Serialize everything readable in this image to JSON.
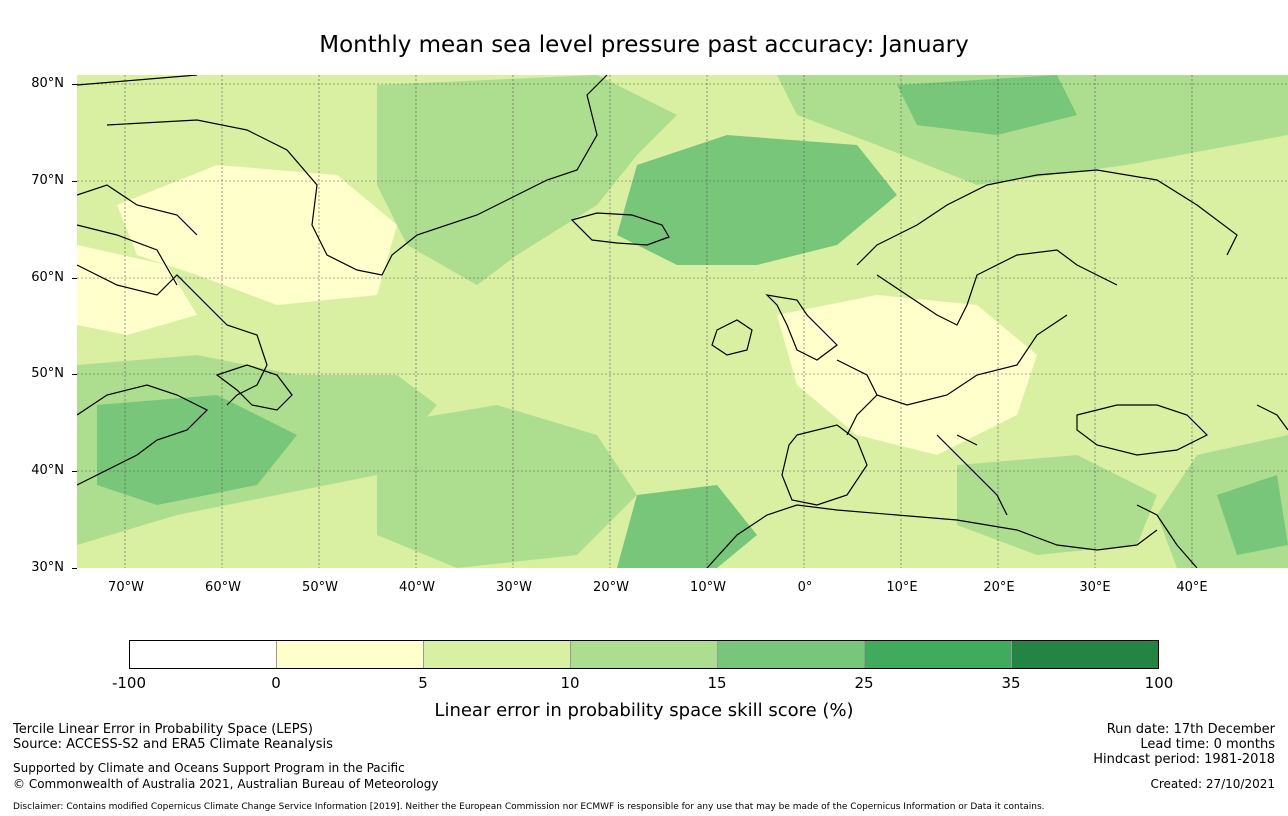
{
  "title": "Monthly mean sea level pressure past accuracy: January",
  "map": {
    "lat_labels": [
      "80°N",
      "70°N",
      "60°N",
      "50°N",
      "40°N",
      "30°N"
    ],
    "lon_labels": [
      "70°W",
      "60°W",
      "50°W",
      "40°W",
      "30°W",
      "20°W",
      "10°W",
      "0°",
      "10°E",
      "20°E",
      "30°E",
      "40°E"
    ],
    "lon_range": [
      -75,
      50
    ],
    "lat_range": [
      30,
      81
    ]
  },
  "colorbar": {
    "title": "Linear error in probability space skill score (%)",
    "ticks": [
      "-100",
      "0",
      "5",
      "10",
      "15",
      "25",
      "35",
      "100"
    ],
    "colors": [
      "#ffffff",
      "#ffffcc",
      "#d9f0a3",
      "#addd8e",
      "#78c679",
      "#41ab5d",
      "#238443"
    ]
  },
  "footer": {
    "leps": "Tercile Linear Error in Probability Space (LEPS)",
    "source": "Source: ACCESS-S2 and ERA5 Climate Reanalysis",
    "supported": "Supported by Climate and Oceans Support Program in the Pacific",
    "copyright": "© Commonwealth of Australia 2021, Australian Bureau of Meteorology",
    "disclaimer": "Disclaimer: Contains modified Copernicus Climate Change Service Information [2019]. Neither the European Commission nor ECMWF is responsible for any use that may be made of the Copernicus Information or Data it contains.",
    "run_date": "Run date: 17th December",
    "lead_time": "Lead time: 0 months",
    "hindcast": "Hindcast period: 1981-2018",
    "created": "Created: 27/10/2021"
  }
}
